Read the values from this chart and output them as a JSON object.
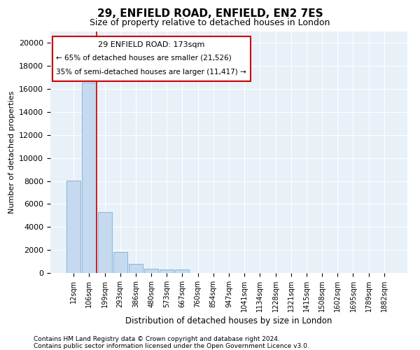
{
  "title": "29, ENFIELD ROAD, ENFIELD, EN2 7ES",
  "subtitle": "Size of property relative to detached houses in London",
  "xlabel": "Distribution of detached houses by size in London",
  "ylabel": "Number of detached properties",
  "bar_labels": [
    "12sqm",
    "106sqm",
    "199sqm",
    "293sqm",
    "386sqm",
    "480sqm",
    "573sqm",
    "667sqm",
    "760sqm",
    "854sqm",
    "947sqm",
    "1041sqm",
    "1134sqm",
    "1228sqm",
    "1321sqm",
    "1415sqm",
    "1508sqm",
    "1602sqm",
    "1695sqm",
    "1789sqm",
    "1882sqm"
  ],
  "bar_heights": [
    8050,
    16550,
    5300,
    1820,
    800,
    350,
    280,
    280,
    0,
    0,
    0,
    0,
    0,
    0,
    0,
    0,
    0,
    0,
    0,
    0,
    0
  ],
  "bar_color": "#c5d9ef",
  "bar_edge_color": "#7aafd4",
  "bar_width": 0.9,
  "vline_x": 1.5,
  "vline_color": "#cc0000",
  "annotation_title": "29 ENFIELD ROAD: 173sqm",
  "annotation_line1": "← 65% of detached houses are smaller (21,526)",
  "annotation_line2": "35% of semi-detached houses are larger (11,417) →",
  "annotation_box_color": "#cc0000",
  "ylim": [
    0,
    21000
  ],
  "yticks": [
    0,
    2000,
    4000,
    6000,
    8000,
    10000,
    12000,
    14000,
    16000,
    18000,
    20000
  ],
  "background_color": "#e8f0f8",
  "footer_line1": "Contains HM Land Registry data © Crown copyright and database right 2024.",
  "footer_line2": "Contains public sector information licensed under the Open Government Licence v3.0."
}
